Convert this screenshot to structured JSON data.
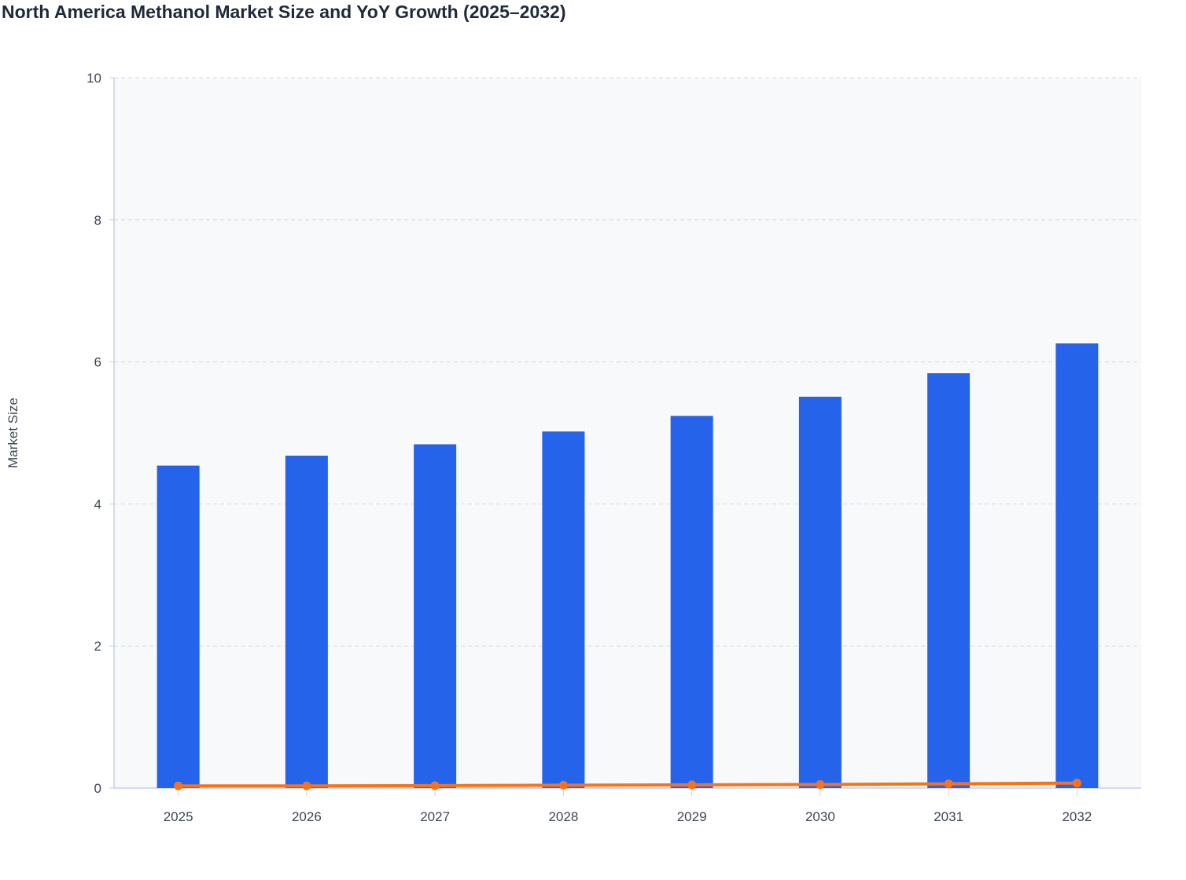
{
  "chart_data": {
    "type": "bar",
    "title": "North America Methanol Market Size and YoY Growth (2025–2032)",
    "xlabel": "",
    "ylabel": "Market Size",
    "ylim": [
      0,
      10
    ],
    "yticks": [
      0,
      2,
      4,
      6,
      8,
      10
    ],
    "grid": true,
    "categories": [
      "2025",
      "2026",
      "2027",
      "2028",
      "2029",
      "2030",
      "2031",
      "2032"
    ],
    "series": [
      {
        "type": "bar",
        "values": [
          4.54,
          4.68,
          4.84,
          5.02,
          5.24,
          5.51,
          5.84,
          6.26
        ],
        "color": "#2563eb"
      },
      {
        "type": "line",
        "values": [
          0.03,
          0.03,
          0.035,
          0.04,
          0.045,
          0.05,
          0.06,
          0.07
        ],
        "color": "#f97316"
      }
    ]
  }
}
